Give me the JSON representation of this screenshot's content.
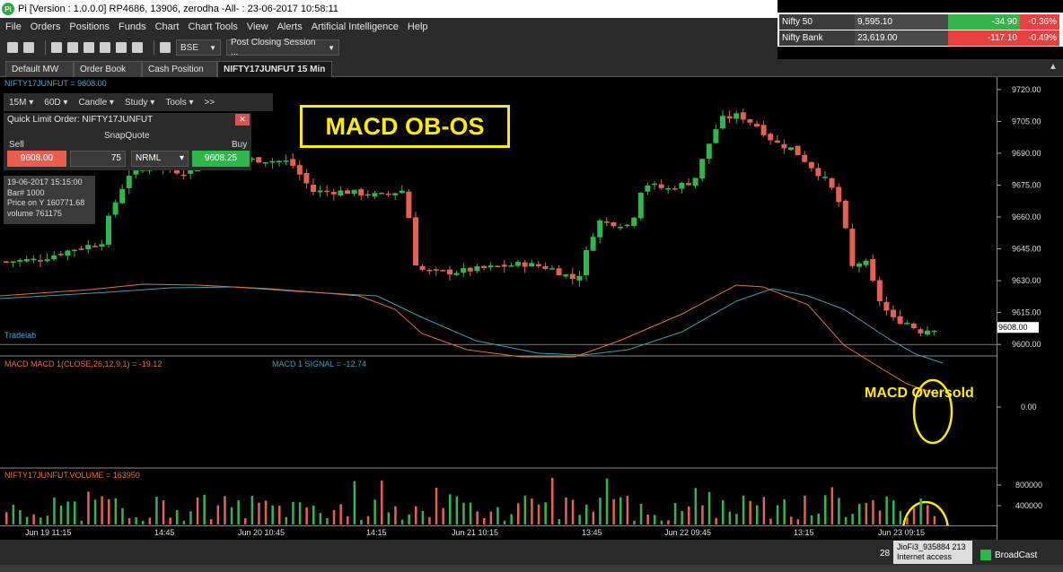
{
  "window": {
    "title": "Pi [Version : 1.0.0.0] RP4686, 13906, zerodha -All- : 23-06-2017 10:58:11",
    "app_icon": "Pi"
  },
  "menu": [
    "File",
    "Orders",
    "Positions",
    "Funds",
    "Chart",
    "Chart Tools",
    "View",
    "Alerts",
    "Artificial Intelligence",
    "Help"
  ],
  "toolbar": {
    "exchange": "BSE",
    "session": "Post Closing Session ..."
  },
  "indices": [
    {
      "name": "Nifty 50",
      "value": "9,595.10",
      "change": "-34.90",
      "pct": "-0.36%"
    },
    {
      "name": "Nifty Bank",
      "value": "23,619.00",
      "change": "-117.10",
      "pct": "-0.49%"
    }
  ],
  "tabs": [
    {
      "label": "Default MW"
    },
    {
      "label": "Order Book"
    },
    {
      "label": "Cash Position"
    },
    {
      "label": "NIFTY17JUNFUT 15 Min"
    }
  ],
  "chart_toolbar": {
    "interval": "15M",
    "period": "60D",
    "type": "Candle",
    "study": "Study",
    "tools": "Tools",
    "more": ">>"
  },
  "quick_order": {
    "title": "Quick Limit Order: NIFTY17JUNFUT",
    "snapquote": "SnapQuote",
    "sell_label": "Sell",
    "buy_label": "Buy",
    "sell_price": "9608.00",
    "qty": "75",
    "product": "NRML",
    "buy_price": "9608.25"
  },
  "info": {
    "line1": "19-06-2017 15:15:00",
    "line2": "Bar# 1000",
    "line3": "Price on Y  160771.68",
    "line4": "volume  761175"
  },
  "labels": {
    "big": "MACD OB-OS",
    "oversold": "MACD Oversold",
    "tradelab": "Tradelab"
  },
  "chart_data": {
    "type": "candlestick",
    "symbol_title": "NIFTY17JUNFUT = 9608.00",
    "last_price": "9608.00",
    "price_ticks": [
      "9720.00",
      "9705.00",
      "9690.00",
      "9675.00",
      "9660.00",
      "9645.00",
      "9630.00",
      "9615.00",
      "9600.00"
    ],
    "ylim": [
      9595,
      9725
    ],
    "macd_title": "MACD MACD 1(CLOSE,26,12,9,1) = -19.12",
    "macd_signal_title": "MACD 1 SIGNAL = -12.74",
    "macd_tick": "0.00",
    "volume_title": "NIFTY17JUNFUT.VOLUME = 163950",
    "volume_ticks": [
      "800000",
      "400000"
    ],
    "x_labels": [
      "Jun 19 11:15",
      "14:45",
      "Jun 20 10:45",
      "14:15",
      "Jun 21 10:15",
      "13:45",
      "Jun 22 09:45",
      "13:15",
      "Jun 23 09:15"
    ],
    "colors": {
      "up": "#2fb84a",
      "down": "#e8604d",
      "macd": "#e8702a",
      "signal": "#3aa0b0"
    }
  },
  "status": {
    "page": "28",
    "jio": "JioFi3_935884  213",
    "internet": "Internet access",
    "broadcast": "BroadCast"
  }
}
